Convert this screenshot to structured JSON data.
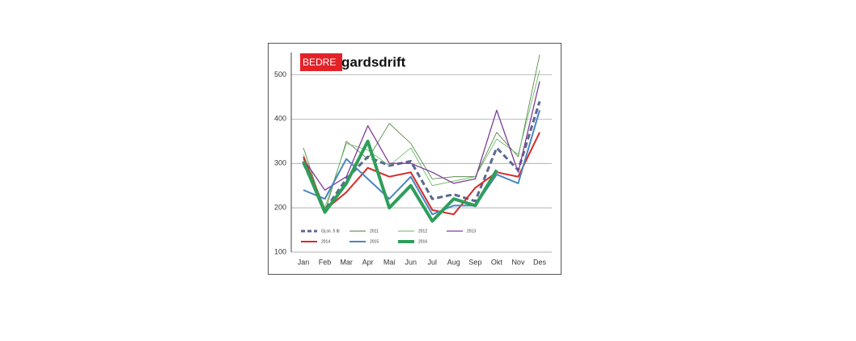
{
  "chart_data": {
    "type": "line",
    "logo": {
      "brand": "BEDRE",
      "name": "gardsdrift"
    },
    "categories": [
      "Jan",
      "Feb",
      "Mar",
      "Apr",
      "Mai",
      "Jun",
      "Jul",
      "Aug",
      "Sep",
      "Okt",
      "Nov",
      "Des"
    ],
    "ylim": [
      100,
      550
    ],
    "yticks": [
      100,
      200,
      300,
      400,
      500
    ],
    "grid": true,
    "series": [
      {
        "name": "Gj.sn. 5 år",
        "color": "#5b6791",
        "dashed": true,
        "width": 3,
        "values": [
          300,
          195,
          265,
          315,
          295,
          305,
          220,
          230,
          215,
          335,
          285,
          440
        ]
      },
      {
        "name": "2011",
        "color": "#4f7a3a",
        "width": 0.8,
        "values": [
          335,
          190,
          350,
          310,
          390,
          345,
          265,
          270,
          270,
          370,
          315,
          545
        ]
      },
      {
        "name": "2012",
        "color": "#5cb85c",
        "width": 0.8,
        "values": [
          320,
          200,
          345,
          330,
          295,
          335,
          250,
          260,
          270,
          355,
          320,
          510
        ]
      },
      {
        "name": "2013",
        "color": "#7d3c98",
        "width": 1.3,
        "values": [
          310,
          240,
          270,
          385,
          300,
          300,
          280,
          255,
          265,
          420,
          280,
          485
        ]
      },
      {
        "name": "2014",
        "color": "#d42a2a",
        "width": 2,
        "values": [
          315,
          195,
          235,
          290,
          270,
          280,
          195,
          185,
          245,
          280,
          270,
          370
        ]
      },
      {
        "name": "2015",
        "color": "#4a86c0",
        "width": 2,
        "values": [
          240,
          220,
          310,
          265,
          220,
          270,
          185,
          205,
          205,
          275,
          255,
          420
        ]
      },
      {
        "name": "2016",
        "color": "#2e9e5a",
        "width": 4,
        "values": [
          305,
          190,
          255,
          350,
          200,
          250,
          170,
          220,
          205,
          285,
          null,
          null
        ]
      }
    ]
  }
}
